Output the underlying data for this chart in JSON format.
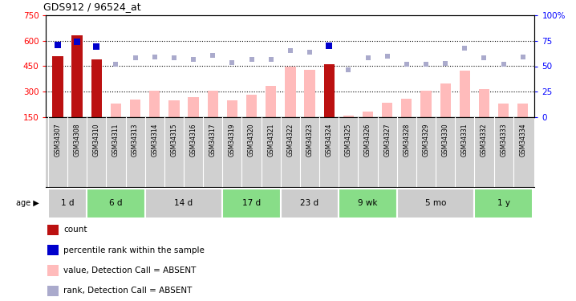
{
  "title": "GDS912 / 96524_at",
  "samples": [
    "GSM34307",
    "GSM34308",
    "GSM34310",
    "GSM34311",
    "GSM34313",
    "GSM34314",
    "GSM34315",
    "GSM34316",
    "GSM34317",
    "GSM34319",
    "GSM34320",
    "GSM34321",
    "GSM34322",
    "GSM34323",
    "GSM34324",
    "GSM34325",
    "GSM34326",
    "GSM34327",
    "GSM34328",
    "GSM34329",
    "GSM34330",
    "GSM34331",
    "GSM34332",
    "GSM34333",
    "GSM34334"
  ],
  "count_values": [
    510,
    630,
    490,
    null,
    null,
    null,
    null,
    null,
    null,
    null,
    null,
    null,
    null,
    null,
    460,
    null,
    null,
    null,
    null,
    null,
    null,
    null,
    null,
    null,
    null
  ],
  "value_absent": [
    null,
    null,
    null,
    230,
    255,
    305,
    250,
    270,
    305,
    250,
    285,
    335,
    450,
    430,
    null,
    160,
    185,
    235,
    260,
    305,
    350,
    425,
    315,
    230,
    230
  ],
  "pct_rank_sample": [
    575,
    595,
    565,
    null,
    null,
    null,
    null,
    null,
    null,
    null,
    null,
    null,
    null,
    null,
    570,
    null,
    null,
    null,
    null,
    null,
    null,
    null,
    null,
    null,
    null
  ],
  "rank_absent": [
    null,
    null,
    null,
    460,
    500,
    505,
    500,
    488,
    512,
    470,
    490,
    490,
    540,
    530,
    null,
    430,
    500,
    508,
    460,
    460,
    468,
    555,
    500,
    460,
    502
  ],
  "groups": [
    {
      "label": "1 d",
      "start": 0,
      "end": 1,
      "color": "#cccccc"
    },
    {
      "label": "6 d",
      "start": 2,
      "end": 4,
      "color": "#88dd88"
    },
    {
      "label": "14 d",
      "start": 5,
      "end": 8,
      "color": "#cccccc"
    },
    {
      "label": "17 d",
      "start": 9,
      "end": 11,
      "color": "#88dd88"
    },
    {
      "label": "23 d",
      "start": 12,
      "end": 14,
      "color": "#cccccc"
    },
    {
      "label": "9 wk",
      "start": 15,
      "end": 17,
      "color": "#88dd88"
    },
    {
      "label": "5 mo",
      "start": 18,
      "end": 21,
      "color": "#cccccc"
    },
    {
      "label": "1 y",
      "start": 22,
      "end": 24,
      "color": "#88dd88"
    }
  ],
  "ylim_left": [
    150,
    750
  ],
  "ylim_right": [
    0,
    100
  ],
  "left_ticks": [
    150,
    300,
    450,
    600,
    750
  ],
  "right_ticks": [
    0,
    25,
    50,
    75,
    100
  ],
  "right_tick_labels": [
    "0",
    "25",
    "50",
    "75",
    "100%"
  ],
  "hgrid_at": [
    300,
    450,
    600
  ],
  "bar_color_count": "#bb1111",
  "bar_color_absent": "#ffbbbb",
  "dot_color_sample": "#0000cc",
  "dot_color_absent_rank": "#aaaacc",
  "bg_color": "#ffffff",
  "label_band_color": "#d0d0d0",
  "legend": [
    {
      "color": "#bb1111",
      "label": "count"
    },
    {
      "color": "#0000cc",
      "label": "percentile rank within the sample"
    },
    {
      "color": "#ffbbbb",
      "label": "value, Detection Call = ABSENT"
    },
    {
      "color": "#aaaacc",
      "label": "rank, Detection Call = ABSENT"
    }
  ]
}
